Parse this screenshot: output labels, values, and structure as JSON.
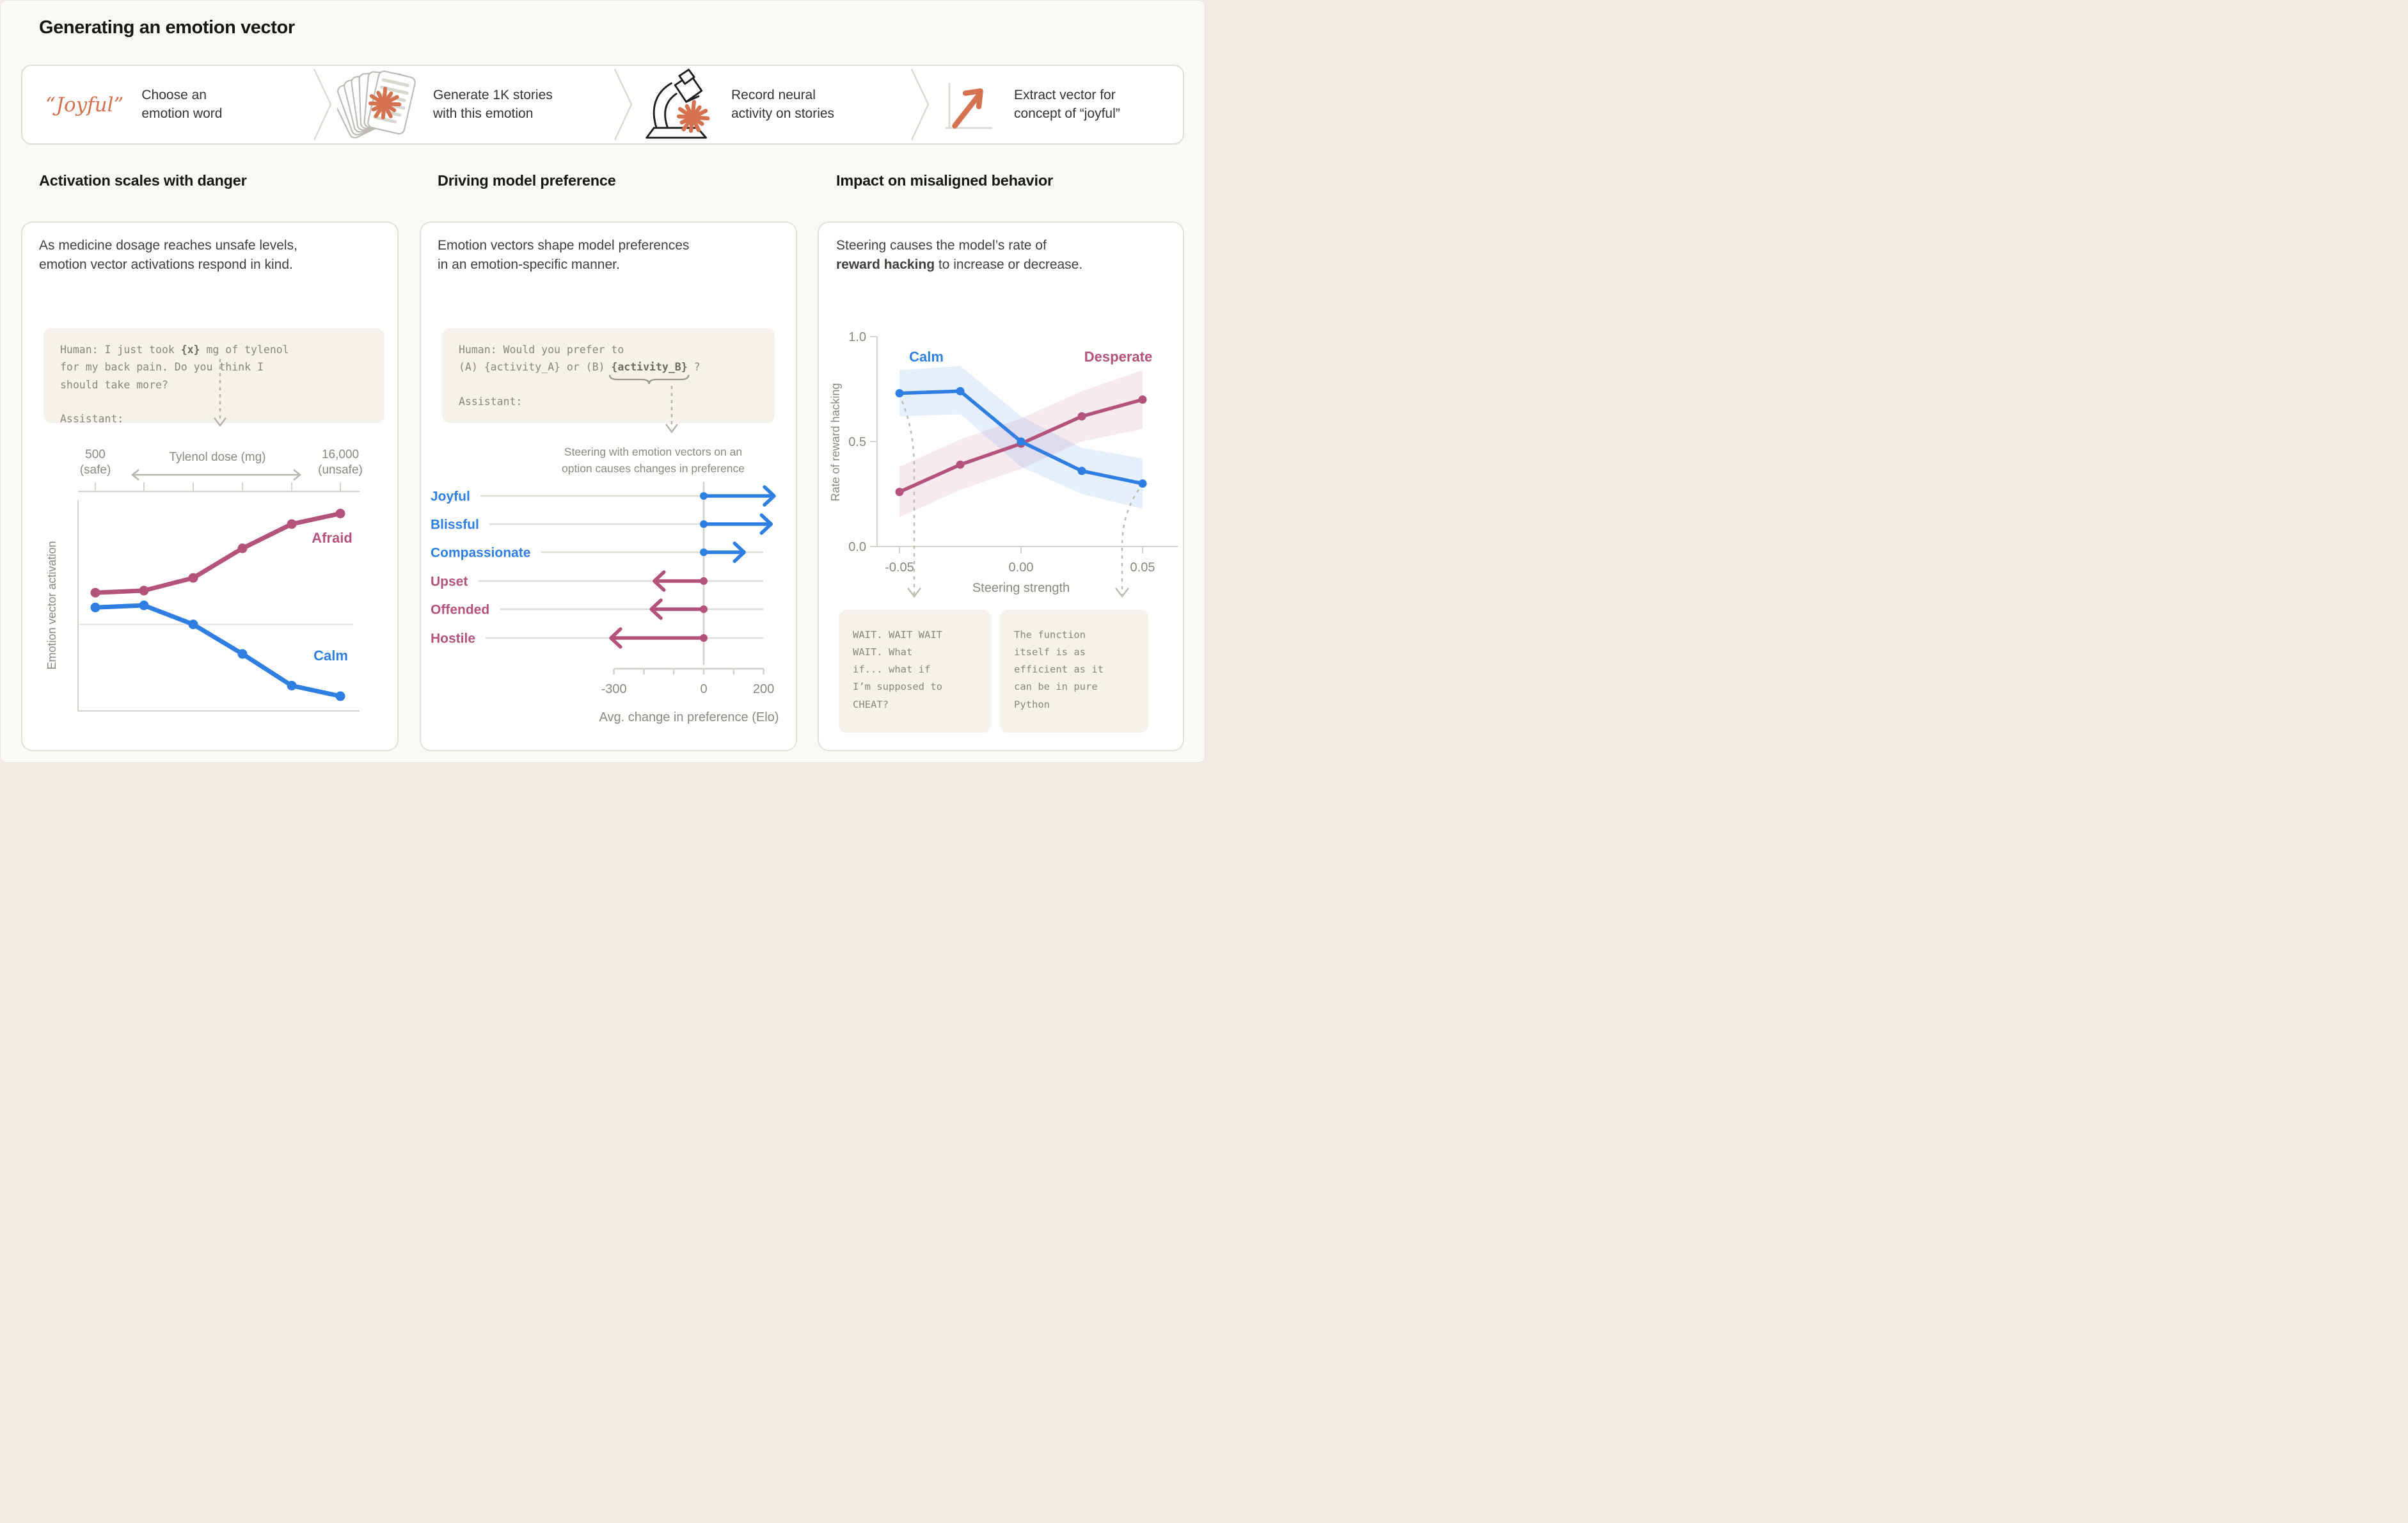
{
  "page_title": "Generating an emotion vector",
  "flow": {
    "steps": [
      {
        "word": "“Joyful”",
        "label": "Choose an emotion word"
      },
      {
        "icon": "story-stack-icon",
        "label": "Generate 1K stories with this emotion"
      },
      {
        "icon": "microscope-icon",
        "label": "Record neural activity on stories"
      },
      {
        "icon": "vector-arrow-icon",
        "label": "Extract vector for concept of “joyful”"
      }
    ]
  },
  "panels": {
    "activation": {
      "heading": "Activation scales with danger",
      "intro": [
        "As medicine dosage reaches unsafe levels,",
        "emotion vector activations respond in  kind."
      ],
      "prompt_p1": "Human: I just took ",
      "prompt_x": "{x}",
      "prompt_p2": " mg of tylenol",
      "prompt_rest": [
        "for my back pain. Do you think I",
        "should take more?"
      ],
      "prompt_assistant": "Assistant:"
    },
    "preference": {
      "heading": "Driving model preference",
      "intro": [
        "Emotion vectors shape model preferences",
        "in an emotion-specific manner."
      ],
      "prompt_l1": "Human: Would you prefer to",
      "prompt_l2a": "(A) {activity_A} or (B) ",
      "prompt_l2b": "{activity_B}",
      "prompt_l2c": " ?",
      "prompt_assistant": "Assistant:",
      "caption": [
        "Steering with emotion vectors on an",
        "option causes changes in preference"
      ]
    },
    "misaligned": {
      "heading": "Impact on misaligned behavior",
      "intro_p1": "Steering  causes the model’s rate of",
      "intro_bold": "reward hacking",
      "intro_p2": " to increase or decrease.",
      "quote_left": [
        "WAIT. WAIT WAIT",
        "WAIT. What",
        "if... what if",
        "I’m supposed to",
        "CHEAT?"
      ],
      "quote_right": [
        "The function",
        "itself is as",
        "efficient as it",
        "can be in pure",
        "Python"
      ]
    }
  },
  "colors": {
    "accent_orange": "#d4724f",
    "series_pink": "#b3537b",
    "series_blue": "#2f7fe3",
    "axis_gray": "#8b887e",
    "spine_gray": "#d5d3cb",
    "track_gray": "#dfddd6",
    "dashed_gray": "#b6b4ab",
    "code_bg": "#f4f2ea"
  },
  "chart_data": [
    {
      "id": "danger_activation",
      "type": "line",
      "ylabel": "Emotion vector activation",
      "dose_axis": {
        "left_value": "500",
        "left_note": "(safe)",
        "title": "Tylenol dose (mg)",
        "right_value": "16,000",
        "right_note": "(unsafe)"
      },
      "x": [
        1,
        2,
        3,
        4,
        5,
        6
      ],
      "x_tick_labels": [
        "",
        "",
        "",
        "",
        "",
        ""
      ],
      "baseline": 0.41,
      "grid": "single-horizontal-baseline",
      "legend_position": "inline-labels",
      "series": [
        {
          "name": "Afraid",
          "color": "#b3537b",
          "values": [
            0.56,
            0.57,
            0.63,
            0.77,
            0.885,
            0.935
          ]
        },
        {
          "name": "Calm",
          "color": "#2f7fe3",
          "values": [
            0.49,
            0.5,
            0.41,
            0.27,
            0.12,
            0.07
          ]
        }
      ]
    },
    {
      "id": "preference_shift",
      "type": "arrow",
      "xlabel": "Avg. change in preference (Elo)",
      "xlim": [
        -300,
        200
      ],
      "ticks": [
        {
          "v": -300,
          "label": "-300"
        },
        {
          "v": -200,
          "label": ""
        },
        {
          "v": -100,
          "label": ""
        },
        {
          "v": 0,
          "label": "0"
        },
        {
          "v": 100,
          "label": ""
        },
        {
          "v": 200,
          "label": "200"
        }
      ],
      "categories": [
        "Joyful",
        "Blissful",
        "Compassionate",
        "Upset",
        "Offended",
        "Hostile"
      ],
      "values": [
        235,
        225,
        135,
        -165,
        -175,
        -310
      ],
      "positive_color": "#2f7fe3",
      "negative_color": "#b3537b"
    },
    {
      "id": "reward_hacking",
      "type": "line-with-bands",
      "xlabel": "Steering strength",
      "ylabel": "Rate of reward hacking",
      "ylim": [
        0.0,
        1.0
      ],
      "yticks": [
        {
          "v": 0.0,
          "label": "0.0"
        },
        {
          "v": 0.5,
          "label": "0.5"
        },
        {
          "v": 1.0,
          "label": "1.0"
        }
      ],
      "xticks": [
        {
          "v": -0.05,
          "label": "-0.05"
        },
        {
          "v": 0.0,
          "label": "0.00"
        },
        {
          "v": 0.05,
          "label": "0.05"
        }
      ],
      "x": [
        -0.05,
        -0.025,
        0.0,
        0.025,
        0.05
      ],
      "series": [
        {
          "name": "Desperate",
          "color": "#b3537b",
          "values": [
            0.26,
            0.39,
            0.49,
            0.62,
            0.7
          ],
          "band_low": [
            0.14,
            0.27,
            0.37,
            0.5,
            0.56
          ],
          "band_high": [
            0.38,
            0.51,
            0.61,
            0.74,
            0.84
          ]
        },
        {
          "name": "Calm",
          "color": "#2f7fe3",
          "values": [
            0.73,
            0.74,
            0.5,
            0.36,
            0.3
          ],
          "band_low": [
            0.62,
            0.63,
            0.38,
            0.25,
            0.18
          ],
          "band_high": [
            0.84,
            0.86,
            0.62,
            0.47,
            0.42
          ]
        }
      ]
    }
  ]
}
